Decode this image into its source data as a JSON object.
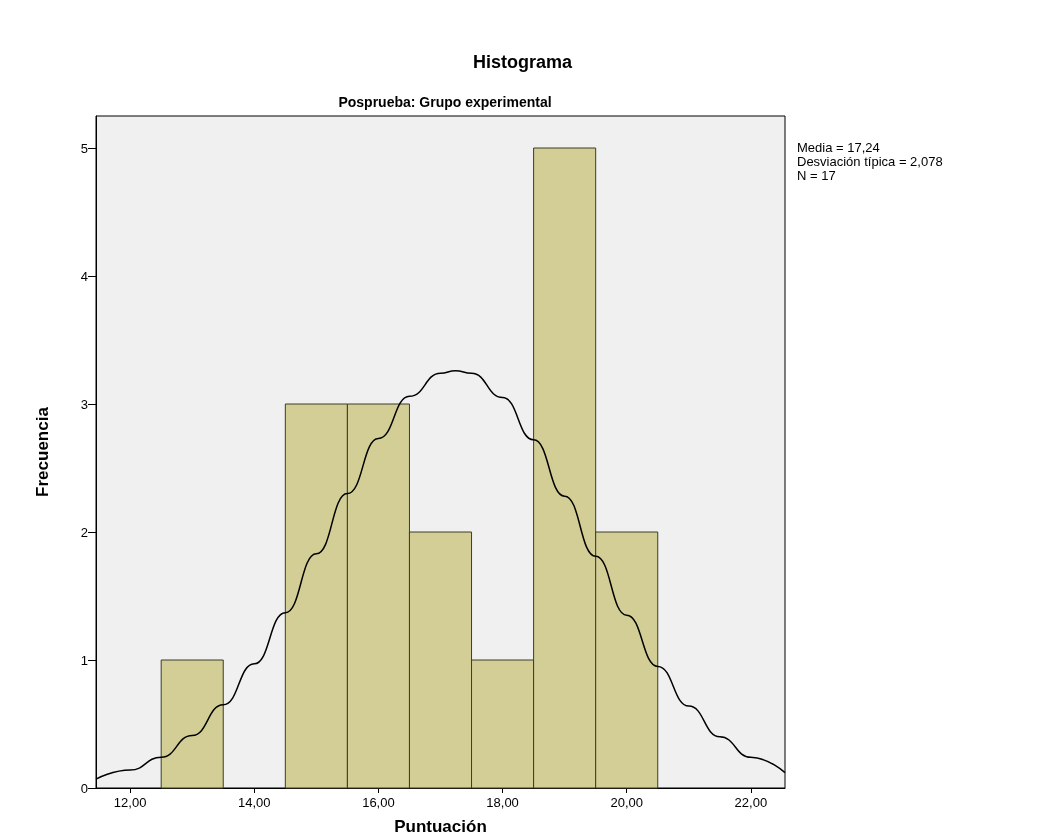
{
  "chart_data": {
    "type": "histogram",
    "title": "Histograma",
    "subtitle": "Posprueba: Grupo experimental",
    "xlabel": "Puntuación",
    "ylabel": "Frecuencia",
    "bins": [
      12.5,
      13.5,
      14.5,
      15.5,
      16.5,
      17.5,
      18.5,
      19.5,
      20.5
    ],
    "values": [
      1,
      0,
      3,
      3,
      2,
      1,
      5,
      2
    ],
    "color": "#d3ce96",
    "series": [
      {
        "type": "line",
        "color": "#000000",
        "x": [
          11.45,
          12,
          12.5,
          13,
          13.5,
          14,
          14.5,
          15,
          15.5,
          16,
          16.5,
          17,
          17.24,
          17.5,
          18,
          18.5,
          19,
          19.5,
          20,
          20.5,
          21,
          21.5,
          22,
          22.55
        ],
        "values": [
          0.07,
          0.14,
          0.24,
          0.41,
          0.65,
          0.97,
          1.37,
          1.83,
          2.3,
          2.73,
          3.06,
          3.24,
          3.26,
          3.24,
          3.05,
          2.72,
          2.28,
          1.81,
          1.35,
          0.95,
          0.64,
          0.4,
          0.24,
          0.12
        ]
      }
    ],
    "xlim": [
      11.45,
      22.55
    ],
    "xticks": [
      {
        "value": 12,
        "label": "12,00"
      },
      {
        "value": 14,
        "label": "14,00"
      },
      {
        "value": 16,
        "label": "16,00"
      },
      {
        "value": 18,
        "label": "18,00"
      },
      {
        "value": 20,
        "label": "20,00"
      },
      {
        "value": 22,
        "label": "22,00"
      }
    ],
    "ylim": [
      0,
      5.25
    ],
    "yticks": [
      0,
      1,
      2,
      3,
      4,
      5
    ],
    "grid": false,
    "legend": false,
    "marker": "none",
    "annotations": [
      "Media = 17,24",
      "Desviación típica = 2,078",
      "N = 17"
    ]
  }
}
